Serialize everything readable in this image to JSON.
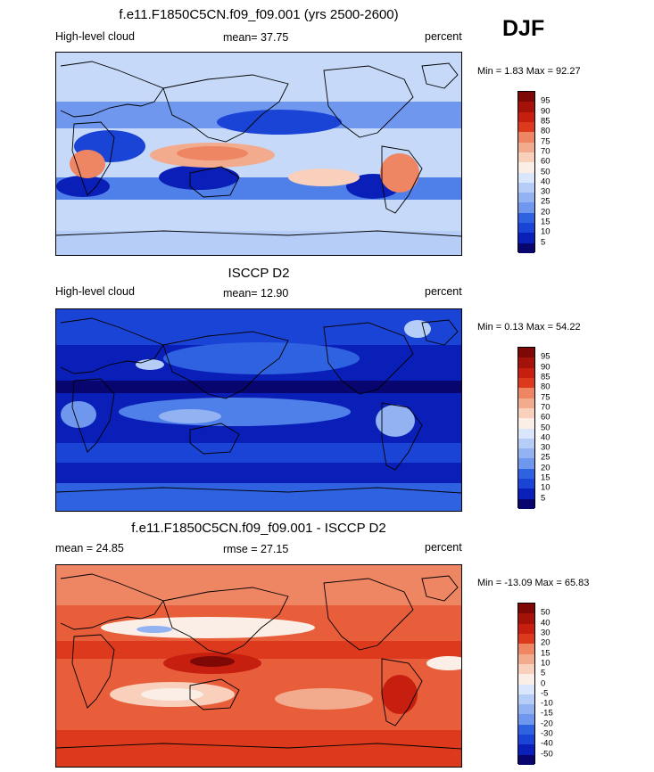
{
  "season": "DJF",
  "scale_colors": {
    "pos": [
      "#08066e",
      "#0a1fb8",
      "#1a44d6",
      "#2f62e0",
      "#4f7fe8",
      "#6f97ee",
      "#92b2f2",
      "#b6cdf7",
      "#d9e6fb",
      "#fbeee6",
      "#f8d0bc",
      "#f3ab8e",
      "#ee8563",
      "#e85e3b",
      "#dd3a1d",
      "#c71f0f",
      "#a4120a",
      "#7d0806"
    ],
    "diff": [
      "#08066e",
      "#0a1fb8",
      "#1a44d6",
      "#2f62e0",
      "#4f7fe8",
      "#6f97ee",
      "#92b2f2",
      "#b6cdf7",
      "#d9e6fb",
      "#fbeee6",
      "#f8d0bc",
      "#f3ab8e",
      "#ee8563",
      "#e85e3b",
      "#dd3a1d",
      "#c71f0f",
      "#a4120a",
      "#7d0806"
    ]
  },
  "panels": [
    {
      "title": "f.e11.F1850C5CN.f09_f09.001 (yrs 2500-2600)",
      "left_label": "High-level cloud",
      "stat_label": "mean=  37.75",
      "units": "percent",
      "minmax": "Min =   1.83 Max =  92.27"
    },
    {
      "title": "ISCCP D2",
      "left_label": "High-level cloud",
      "stat_label": "mean=  12.90",
      "units": "percent",
      "minmax": "Min =   0.13 Max =  54.22"
    },
    {
      "title": "f.e11.F1850C5CN.f09_f09.001 - ISCCP D2",
      "left_label": "mean =  24.85",
      "stat_label": "rmse =  27.15",
      "units": "percent",
      "minmax": "Min = -13.09 Max =  65.83"
    }
  ],
  "chart_data": [
    {
      "type": "heatmap",
      "title": "f.e11.F1850C5CN.f09_f09.001 (yrs 2500-2600)",
      "variable": "High-level cloud",
      "units": "percent",
      "mean": 37.75,
      "min": 1.83,
      "max": 92.27,
      "colorbar_levels": [
        5,
        10,
        15,
        20,
        25,
        30,
        40,
        50,
        60,
        70,
        75,
        80,
        85,
        90,
        95
      ]
    },
    {
      "type": "heatmap",
      "title": "ISCCP D2",
      "variable": "High-level cloud",
      "units": "percent",
      "mean": 12.9,
      "min": 0.13,
      "max": 54.22,
      "colorbar_levels": [
        5,
        10,
        15,
        20,
        25,
        30,
        40,
        50,
        60,
        70,
        75,
        80,
        85,
        90,
        95
      ]
    },
    {
      "type": "heatmap",
      "title": "f.e11.F1850C5CN.f09_f09.001 - ISCCP D2",
      "units": "percent",
      "mean": 24.85,
      "rmse": 27.15,
      "min": -13.09,
      "max": 65.83,
      "colorbar_levels": [
        -50,
        -40,
        -30,
        -20,
        -15,
        -10,
        -5,
        0,
        5,
        10,
        15,
        20,
        30,
        40,
        50
      ]
    }
  ]
}
